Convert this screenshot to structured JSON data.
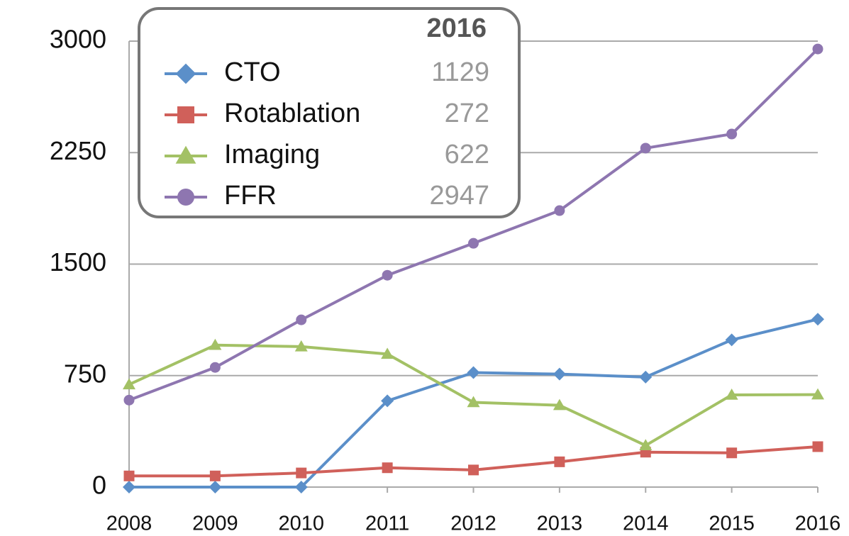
{
  "chart_data": {
    "type": "line",
    "x": [
      2008,
      2009,
      2010,
      2011,
      2012,
      2013,
      2014,
      2015,
      2016
    ],
    "xlim": [
      2008,
      2016
    ],
    "xticks": [
      2008,
      2009,
      2010,
      2011,
      2012,
      2013,
      2014,
      2015,
      2016
    ],
    "ylim": [
      0,
      3000
    ],
    "yticks": [
      0,
      750,
      1500,
      2250,
      3000
    ],
    "grid": true,
    "legend": "upper left",
    "series": [
      {
        "name": "CTO",
        "color": "#5b8fc9",
        "marker": "diamond",
        "values": [
          0,
          0,
          0,
          580,
          770,
          760,
          740,
          990,
          1129
        ]
      },
      {
        "name": "Rotablation",
        "color": "#d0605a",
        "marker": "square",
        "values": [
          75,
          75,
          95,
          130,
          115,
          170,
          235,
          230,
          272
        ]
      },
      {
        "name": "Imaging",
        "color": "#a3c165",
        "marker": "triangle",
        "values": [
          690,
          955,
          945,
          895,
          570,
          550,
          280,
          620,
          622
        ]
      },
      {
        "name": "FFR",
        "color": "#8e76b0",
        "marker": "circle",
        "values": [
          585,
          805,
          1125,
          1425,
          1640,
          1860,
          2280,
          2375,
          2947
        ]
      }
    ]
  }
}
